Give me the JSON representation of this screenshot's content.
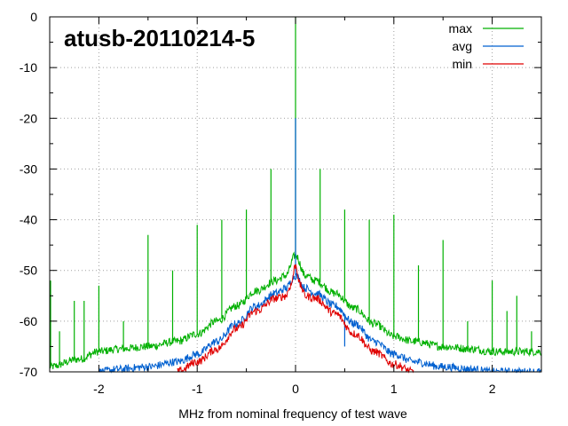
{
  "chart_data": {
    "type": "line",
    "title": "atusb-20110214-5",
    "xlabel": "MHz from nominal frequency of test wave",
    "ylabel": "",
    "xlim": [
      -2.5,
      2.5
    ],
    "ylim": [
      -70,
      0
    ],
    "xticks": [
      -2,
      -1,
      0,
      1,
      2
    ],
    "xtick_labels": [
      "-2",
      "-1",
      "0",
      "1",
      "2"
    ],
    "yticks": [
      0,
      -10,
      -20,
      -30,
      -40,
      -50,
      -60,
      -70
    ],
    "ytick_labels": [
      "0",
      "-10",
      "-20",
      "-30",
      "-40",
      "-50",
      "-60",
      "-70"
    ],
    "grid": true,
    "legend_position": "top-right",
    "series": [
      {
        "name": "max",
        "color": "#00b000",
        "x": [
          -2.5,
          -2.2,
          -2.0,
          -1.8,
          -1.5,
          -1.2,
          -1.0,
          -0.8,
          -0.6,
          -0.4,
          -0.2,
          -0.1,
          0.0,
          0.1,
          0.2,
          0.4,
          0.6,
          0.8,
          1.0,
          1.2,
          1.5,
          1.8,
          2.0,
          2.2,
          2.5
        ],
        "y": [
          -69,
          -67.5,
          -66,
          -65.5,
          -65,
          -64,
          -62.5,
          -60,
          -57,
          -54,
          -52,
          -51,
          -47,
          -51,
          -52,
          -54.5,
          -57.5,
          -60.5,
          -63,
          -64,
          -65,
          -65.5,
          -66,
          -66,
          -66
        ],
        "spikes": [
          {
            "x": -2.5,
            "y": -52
          },
          {
            "x": -2.4,
            "y": -62
          },
          {
            "x": -2.25,
            "y": -56
          },
          {
            "x": -2.15,
            "y": -56
          },
          {
            "x": -2.0,
            "y": -53
          },
          {
            "x": -1.75,
            "y": -60
          },
          {
            "x": -1.5,
            "y": -43
          },
          {
            "x": -1.25,
            "y": -50
          },
          {
            "x": -1.0,
            "y": -41
          },
          {
            "x": -0.75,
            "y": -40
          },
          {
            "x": -0.5,
            "y": -38
          },
          {
            "x": -0.25,
            "y": -30
          },
          {
            "x": 0.0,
            "y": 0
          },
          {
            "x": 0.25,
            "y": -30
          },
          {
            "x": 0.5,
            "y": -38
          },
          {
            "x": 0.75,
            "y": -40
          },
          {
            "x": 1.0,
            "y": -39
          },
          {
            "x": 1.25,
            "y": -49
          },
          {
            "x": 1.5,
            "y": -44
          },
          {
            "x": 1.75,
            "y": -60
          },
          {
            "x": 2.0,
            "y": -52
          },
          {
            "x": 2.15,
            "y": -58
          },
          {
            "x": 2.25,
            "y": -55
          },
          {
            "x": 2.4,
            "y": -62
          }
        ]
      },
      {
        "name": "avg",
        "color": "#0060d0",
        "x": [
          -2.0,
          -1.8,
          -1.5,
          -1.2,
          -1.0,
          -0.8,
          -0.6,
          -0.4,
          -0.2,
          -0.1,
          0.0,
          0.1,
          0.2,
          0.4,
          0.6,
          0.8,
          1.0,
          1.2,
          1.5,
          1.8,
          2.0,
          2.2,
          2.5
        ],
        "y": [
          -70,
          -69.5,
          -69,
          -68,
          -66.5,
          -64,
          -60.5,
          -57,
          -54.5,
          -53.5,
          -51,
          -53.5,
          -54.5,
          -57,
          -60.5,
          -64,
          -66.5,
          -68,
          -69,
          -69.5,
          -70,
          -70,
          -70
        ],
        "spikes": [
          {
            "x": 0.0,
            "y": -20
          },
          {
            "x": 0.5,
            "y": -65
          },
          {
            "x": 1.0,
            "y": -66
          },
          {
            "x": 1.75,
            "y": -69
          }
        ]
      },
      {
        "name": "min",
        "color": "#e00000",
        "x": [
          -1.2,
          -1.0,
          -0.8,
          -0.6,
          -0.4,
          -0.2,
          -0.1,
          -0.05,
          0.0,
          0.05,
          0.1,
          0.2,
          0.4,
          0.6,
          0.8,
          1.0,
          1.2
        ],
        "y": [
          -70,
          -68,
          -65.5,
          -61.5,
          -58,
          -55.5,
          -55,
          -53,
          -49,
          -53,
          -55,
          -55.5,
          -58.5,
          -62.5,
          -66,
          -68.5,
          -70
        ],
        "spikes": []
      }
    ]
  }
}
